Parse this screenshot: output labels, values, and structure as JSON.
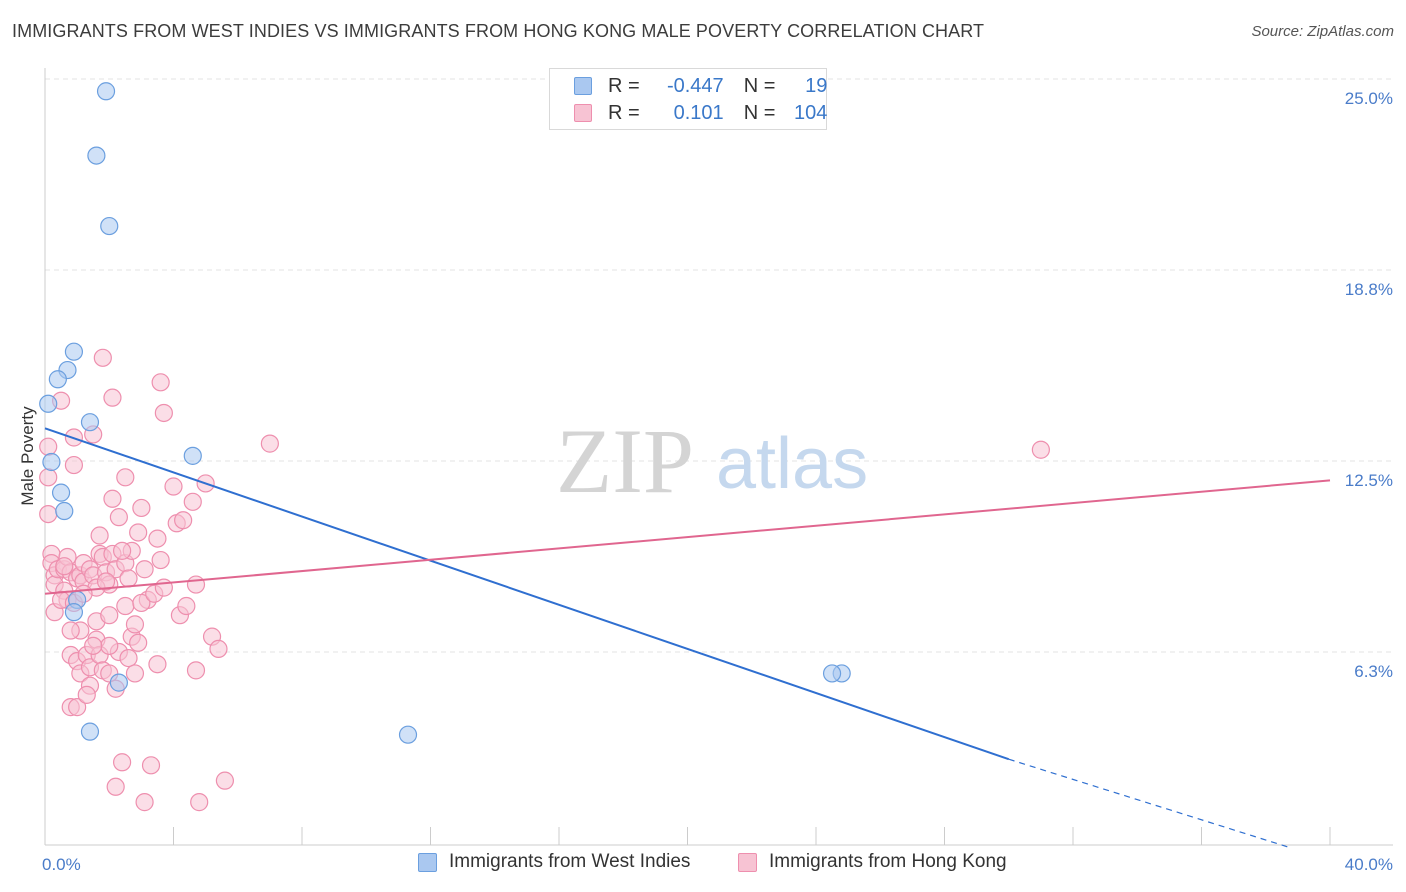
{
  "title": "IMMIGRANTS FROM WEST INDIES VS IMMIGRANTS FROM HONG KONG MALE POVERTY CORRELATION CHART",
  "source": "Source: ZipAtlas.com",
  "watermark": {
    "zip": "ZIP",
    "atlas": "atlas"
  },
  "legend": {
    "rows": [
      {
        "r_label": "R =",
        "r_value": "-0.447",
        "n_label": "N =",
        "n_value": "19"
      },
      {
        "r_label": "R =",
        "r_value": "0.101",
        "n_label": "N =",
        "n_value": "104"
      }
    ]
  },
  "bottom_legend": {
    "west_indies": "Immigrants from West Indies",
    "hong_kong": "Immigrants from Hong Kong"
  },
  "colors": {
    "blue_fill": "#aac8f0",
    "blue_stroke": "#6b9fdf",
    "blue_line": "#2f6fd0",
    "pink_fill": "#f7c3d3",
    "pink_stroke": "#ee8fae",
    "pink_line": "#e0668f",
    "tick_label": "#4a7cc9"
  },
  "chart_data": {
    "type": "scatter",
    "title": "IMMIGRANTS FROM WEST INDIES VS IMMIGRANTS FROM HONG KONG MALE POVERTY CORRELATION CHART",
    "xlabel": "",
    "ylabel": "Male Poverty",
    "xlim": [
      0,
      40
    ],
    "ylim": [
      0,
      25
    ],
    "x_tick_labels": [
      {
        "value": 0,
        "label": "0.0%"
      },
      {
        "value": 40,
        "label": "40.0%"
      }
    ],
    "y_tick_labels": [
      {
        "value": 6.3,
        "label": "6.3%"
      },
      {
        "value": 12.5,
        "label": "12.5%"
      },
      {
        "value": 18.8,
        "label": "18.8%"
      },
      {
        "value": 25.0,
        "label": "25.0%"
      }
    ],
    "series": [
      {
        "name": "Immigrants from West Indies",
        "color": "blue",
        "points": [
          [
            1.9,
            24.6
          ],
          [
            1.6,
            22.5
          ],
          [
            2.0,
            20.2
          ],
          [
            0.9,
            16.1
          ],
          [
            0.7,
            15.5
          ],
          [
            0.4,
            15.2
          ],
          [
            0.1,
            14.4
          ],
          [
            1.4,
            13.8
          ],
          [
            4.6,
            12.7
          ],
          [
            0.2,
            12.5
          ],
          [
            0.5,
            11.5
          ],
          [
            0.6,
            10.9
          ],
          [
            1.0,
            8.0
          ],
          [
            0.9,
            7.6
          ],
          [
            2.3,
            5.3
          ],
          [
            1.4,
            3.7
          ],
          [
            11.3,
            3.6
          ],
          [
            24.8,
            5.6
          ],
          [
            24.5,
            5.6
          ]
        ],
        "trend": {
          "x": [
            0,
            30.0
          ],
          "y": [
            13.6,
            2.8
          ],
          "dashed_extension": {
            "x": [
              30.0,
              38.8
            ],
            "y": [
              2.8,
              -0.1
            ]
          }
        }
      },
      {
        "name": "Immigrants from Hong Kong",
        "color": "pink",
        "points": [
          [
            0.1,
            13.0
          ],
          [
            0.1,
            12.0
          ],
          [
            0.1,
            10.8
          ],
          [
            0.2,
            9.5
          ],
          [
            0.2,
            9.2
          ],
          [
            0.3,
            8.8
          ],
          [
            0.3,
            8.5
          ],
          [
            0.4,
            9.0
          ],
          [
            0.5,
            14.5
          ],
          [
            0.6,
            9.0
          ],
          [
            0.6,
            8.3
          ],
          [
            0.7,
            9.4
          ],
          [
            0.7,
            8.0
          ],
          [
            0.8,
            8.9
          ],
          [
            0.8,
            6.2
          ],
          [
            0.8,
            4.5
          ],
          [
            0.9,
            13.3
          ],
          [
            0.9,
            12.4
          ],
          [
            1.0,
            8.7
          ],
          [
            1.0,
            6.0
          ],
          [
            1.0,
            4.5
          ],
          [
            1.1,
            8.8
          ],
          [
            1.1,
            7.0
          ],
          [
            1.1,
            5.6
          ],
          [
            1.2,
            9.2
          ],
          [
            1.2,
            8.6
          ],
          [
            1.3,
            6.2
          ],
          [
            1.4,
            9.0
          ],
          [
            1.4,
            5.8
          ],
          [
            1.4,
            5.2
          ],
          [
            1.5,
            13.4
          ],
          [
            1.5,
            8.8
          ],
          [
            1.6,
            7.3
          ],
          [
            1.6,
            6.7
          ],
          [
            1.7,
            10.1
          ],
          [
            1.7,
            9.5
          ],
          [
            1.7,
            6.2
          ],
          [
            1.8,
            15.9
          ],
          [
            1.8,
            9.4
          ],
          [
            1.8,
            5.7
          ],
          [
            1.9,
            8.9
          ],
          [
            2.0,
            8.5
          ],
          [
            2.0,
            5.6
          ],
          [
            2.1,
            14.6
          ],
          [
            2.1,
            11.3
          ],
          [
            2.1,
            9.5
          ],
          [
            2.2,
            9.0
          ],
          [
            2.2,
            5.1
          ],
          [
            2.3,
            6.3
          ],
          [
            2.4,
            2.7
          ],
          [
            2.5,
            12.0
          ],
          [
            2.5,
            9.2
          ],
          [
            2.5,
            7.8
          ],
          [
            2.6,
            8.7
          ],
          [
            2.7,
            9.6
          ],
          [
            2.7,
            6.8
          ],
          [
            2.8,
            7.2
          ],
          [
            2.9,
            10.2
          ],
          [
            3.0,
            11.0
          ],
          [
            3.1,
            9.0
          ],
          [
            3.2,
            8.0
          ],
          [
            3.3,
            2.6
          ],
          [
            3.5,
            10.0
          ],
          [
            3.6,
            15.1
          ],
          [
            3.6,
            9.3
          ],
          [
            3.7,
            14.1
          ],
          [
            4.0,
            11.7
          ],
          [
            4.1,
            10.5
          ],
          [
            4.2,
            7.5
          ],
          [
            4.4,
            7.8
          ],
          [
            4.6,
            11.2
          ],
          [
            4.7,
            8.5
          ],
          [
            4.7,
            5.7
          ],
          [
            4.8,
            1.4
          ],
          [
            5.0,
            11.8
          ],
          [
            5.2,
            6.8
          ],
          [
            5.4,
            6.4
          ],
          [
            5.6,
            2.1
          ],
          [
            7.0,
            13.1
          ],
          [
            31.0,
            12.9
          ],
          [
            0.3,
            7.6
          ],
          [
            0.5,
            8.0
          ],
          [
            0.9,
            7.9
          ],
          [
            1.3,
            4.9
          ],
          [
            1.6,
            8.4
          ],
          [
            2.0,
            6.5
          ],
          [
            2.3,
            10.7
          ],
          [
            2.6,
            6.1
          ],
          [
            2.8,
            5.6
          ],
          [
            3.0,
            7.9
          ],
          [
            3.1,
            1.4
          ],
          [
            3.4,
            8.2
          ],
          [
            3.7,
            8.4
          ],
          [
            4.3,
            10.6
          ],
          [
            1.2,
            8.2
          ],
          [
            0.6,
            9.1
          ],
          [
            1.9,
            8.6
          ],
          [
            2.4,
            9.6
          ],
          [
            2.2,
            1.9
          ],
          [
            1.5,
            6.5
          ],
          [
            0.8,
            7.0
          ],
          [
            2.9,
            6.6
          ],
          [
            3.5,
            5.9
          ],
          [
            2.0,
            7.5
          ]
        ],
        "trend": {
          "x": [
            0,
            40.0
          ],
          "y": [
            8.2,
            11.9
          ]
        }
      }
    ]
  }
}
